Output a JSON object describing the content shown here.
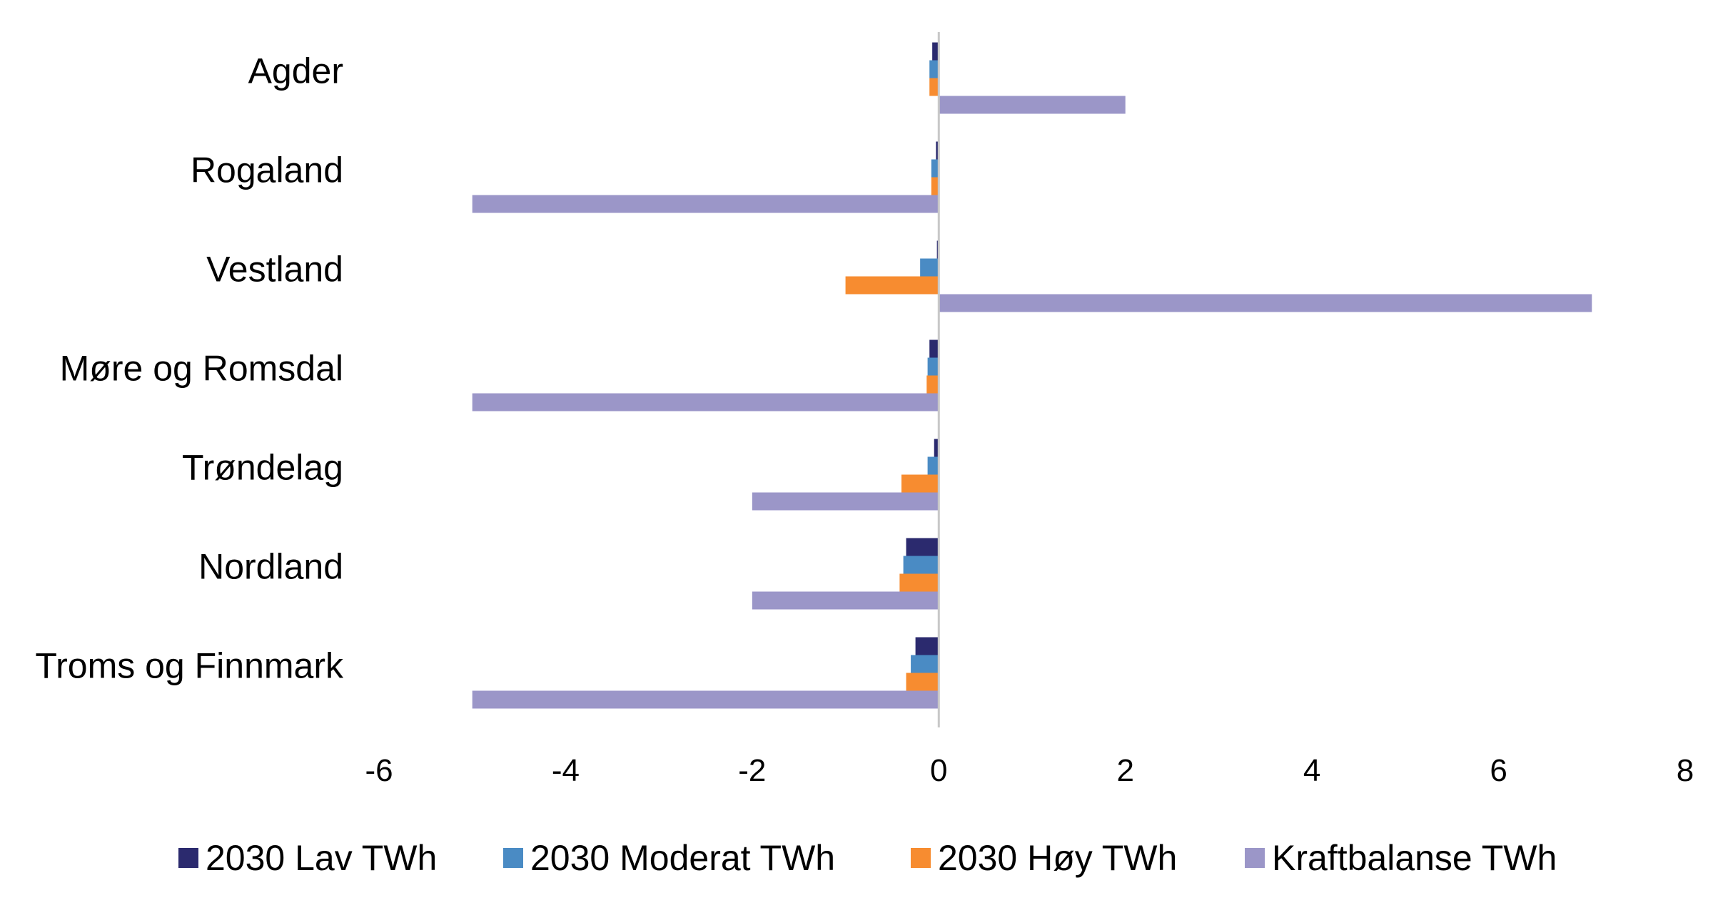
{
  "chart_data": {
    "type": "bar",
    "orientation": "horizontal",
    "title": "",
    "xlabel": "",
    "ylabel": "",
    "categories": [
      "Agder",
      "Rogaland",
      "Vestland",
      "Møre og Romsdal",
      "Trøndelag",
      "Nordland",
      "Troms og Finnmark"
    ],
    "series": [
      {
        "name": "2030 Lav TWh",
        "color": "#2b2a6e",
        "values": [
          -0.07,
          -0.03,
          -0.02,
          -0.1,
          -0.05,
          -0.35,
          -0.25
        ]
      },
      {
        "name": "2030 Moderat TWh",
        "color": "#4a8bc4",
        "values": [
          -0.1,
          -0.08,
          -0.2,
          -0.12,
          -0.12,
          -0.38,
          -0.3
        ]
      },
      {
        "name": "2030 Høy TWh",
        "color": "#f78c30",
        "values": [
          -0.1,
          -0.08,
          -1.0,
          -0.13,
          -0.4,
          -0.42,
          -0.35
        ]
      },
      {
        "name": "Kraftbalanse TWh",
        "color": "#9b96c8",
        "values": [
          2,
          -5,
          7,
          -5,
          -2,
          -2,
          -5
        ]
      }
    ],
    "xlim": [
      -6,
      8
    ],
    "xticks": [
      "-6",
      "-4",
      "-2",
      "0",
      "2",
      "4",
      "6",
      "8"
    ],
    "grid": false,
    "legend_position": "bottom"
  }
}
